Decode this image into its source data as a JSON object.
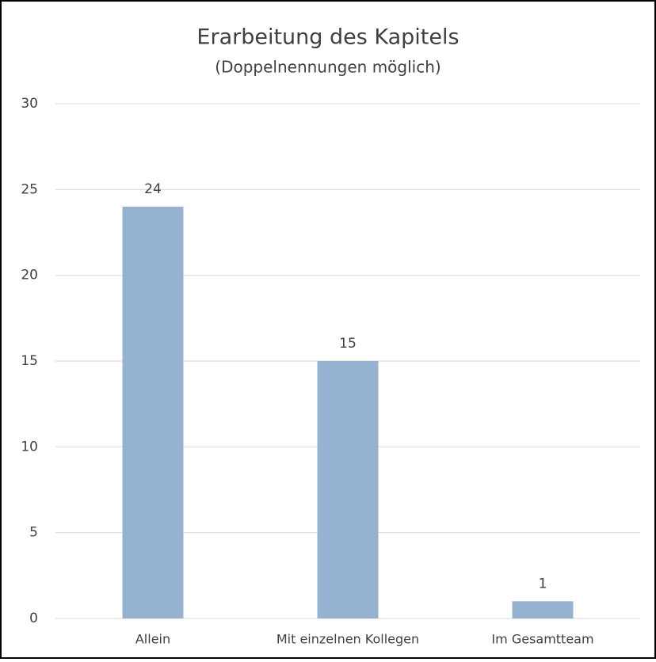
{
  "chart_data": {
    "type": "bar",
    "title": "Erarbeitung des Kapitels",
    "subtitle": "(Doppelnennungen möglich)",
    "categories": [
      "Allein",
      "Mit einzelnen Kollegen",
      "Im Gesamtteam"
    ],
    "values": [
      24,
      15,
      1
    ],
    "color": "#95b3d0",
    "ylim": [
      0,
      30
    ],
    "yticks": [
      0,
      5,
      10,
      15,
      20,
      25,
      30
    ],
    "grid": true
  }
}
